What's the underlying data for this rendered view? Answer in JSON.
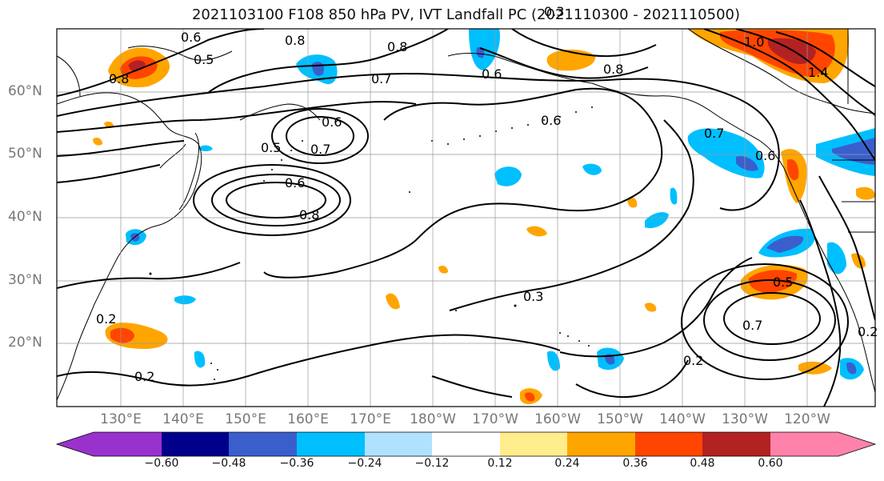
{
  "title": "2021103100 F108 850 hPa PV, IVT Landfall PC (2021110300 - 2021110500)",
  "lat_labels": [
    "60°N",
    "50°N",
    "40°N",
    "30°N",
    "20°N"
  ],
  "lon_labels": [
    "130°E",
    "140°E",
    "150°E",
    "160°E",
    "170°E",
    "180°W",
    "170°W",
    "160°W",
    "150°W",
    "140°W",
    "130°W",
    "120°W"
  ],
  "contour_labels": [
    "0.8",
    "0.6",
    "0.5",
    "0.8",
    "0.7",
    "0.8",
    "0.6",
    "0.7",
    "0.6",
    "0.5",
    "0.6",
    "0.8",
    "0.3",
    "0.8",
    "0.6",
    "1.0",
    "1.4",
    "0.7",
    "0.6",
    "0.5",
    "0.7",
    "0.2",
    "0.3",
    "0.2",
    "0.2",
    "0.2"
  ],
  "colorbar": {
    "colors": [
      "#9932cc",
      "#00008b",
      "#3a5fcd",
      "#00bfff",
      "#b0e2ff",
      "#ffffff",
      "#ffec8b",
      "#ffa500",
      "#ff4500",
      "#b22222",
      "#ff82ab"
    ],
    "ticks": [
      "−0.60",
      "−0.48",
      "−0.36",
      "−0.24",
      "−0.12",
      "0.12",
      "0.24",
      "0.36",
      "0.48",
      "0.60"
    ]
  },
  "colors": {
    "land_edge": "#000000",
    "grid": "#999999",
    "contour": "#000000"
  }
}
